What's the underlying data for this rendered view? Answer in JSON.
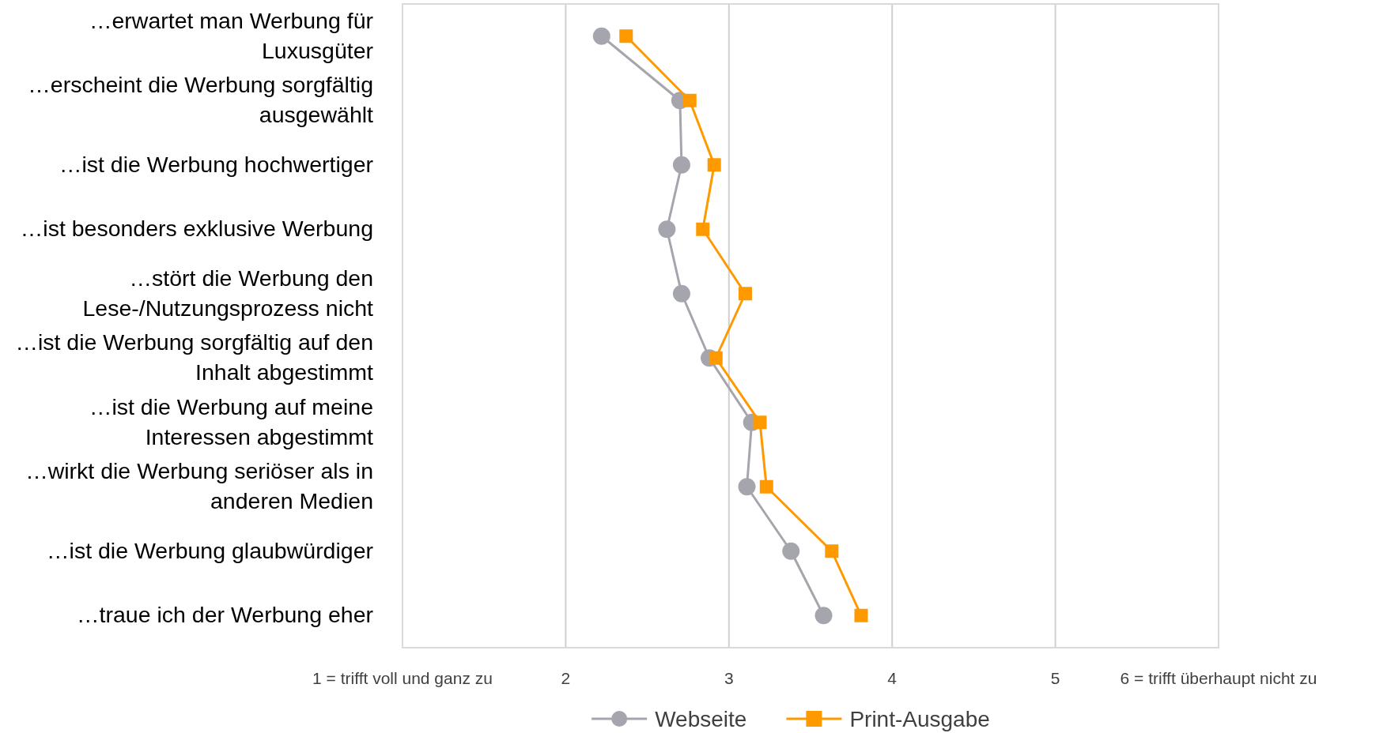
{
  "chart_data": {
    "type": "line",
    "orientation": "horizontal",
    "categories": [
      "…erwartet man Werbung für Luxusgüter",
      "…erscheint die Werbung sorgfältig ausgewählt",
      "…ist die Werbung hochwertiger",
      "…ist besonders exklusive Werbung",
      "…stört die Werbung den Lese-/Nutzungsprozess nicht",
      "…ist die Werbung sorgfältig auf den Inhalt abgestimmt",
      "…ist die Werbung auf meine Interessen abgestimmt",
      "…wirkt die Werbung seriöser als in anderen Medien",
      "…ist die Werbung glaubwürdiger",
      "…traue ich der Werbung eher"
    ],
    "series": [
      {
        "name": "Webseite",
        "color": "#a5a5ad",
        "marker": "circle",
        "values": [
          2.22,
          2.7,
          2.71,
          2.62,
          2.71,
          2.88,
          3.14,
          3.11,
          3.38,
          3.58
        ]
      },
      {
        "name": "Print-Ausgabe",
        "color": "#ff9900",
        "marker": "square",
        "values": [
          2.37,
          2.76,
          2.91,
          2.84,
          3.1,
          2.92,
          3.19,
          3.23,
          3.63,
          3.81
        ]
      }
    ],
    "xlim": [
      1,
      6
    ],
    "xticks": [
      {
        "value": 1,
        "label": "1 = trifft voll und ganz zu"
      },
      2,
      3,
      4,
      5,
      {
        "value": 6,
        "label": "6 = trifft überhaupt nicht zu"
      }
    ],
    "grid": "x",
    "legend": "bottom",
    "line_style": "solid"
  }
}
